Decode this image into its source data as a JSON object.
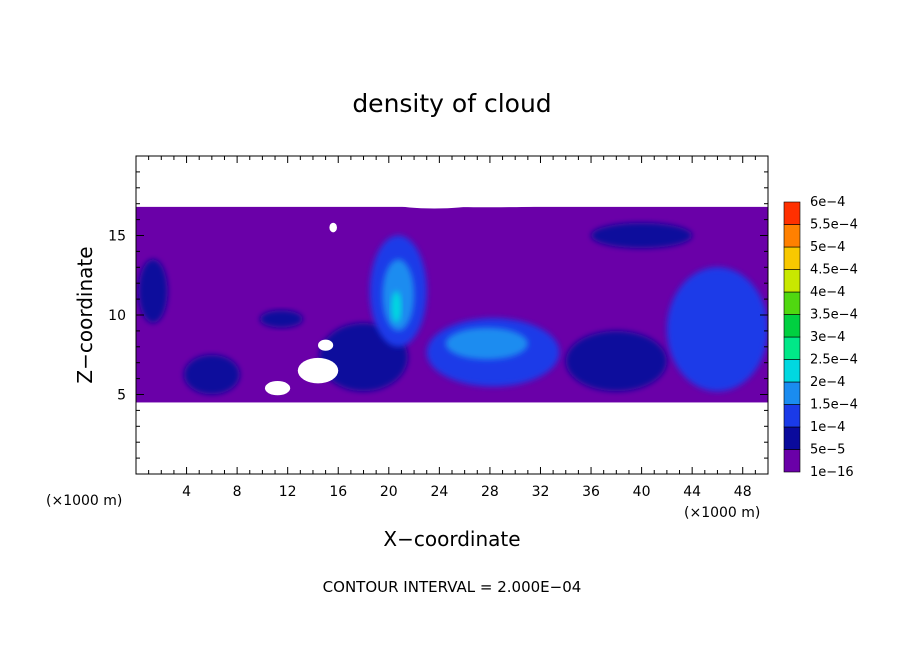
{
  "chart_data": {
    "type": "heatmap",
    "title": "density of cloud",
    "xlabel": "X−coordinate",
    "ylabel": "Z−coordinate",
    "x_unit": "(×1000 m)",
    "y_unit": "(×1000 m)",
    "xlim": [
      0,
      50
    ],
    "ylim": [
      0,
      20
    ],
    "x_ticks": [
      4,
      8,
      12,
      16,
      20,
      24,
      28,
      32,
      36,
      40,
      44,
      48
    ],
    "y_ticks": [
      5,
      10,
      15
    ],
    "grid": false,
    "colorbar": {
      "placement": "right",
      "levels": [
        {
          "label": "1e−16",
          "value": 1e-16,
          "color": "#6a00a8"
        },
        {
          "label": "5e−5",
          "value": 5e-05,
          "color": "#0a0a9c"
        },
        {
          "label": "1e−4",
          "value": 0.0001,
          "color": "#1a3ae8"
        },
        {
          "label": "1.5e−4",
          "value": 0.00015,
          "color": "#1a8cf0"
        },
        {
          "label": "2e−4",
          "value": 0.0002,
          "color": "#00d8e0"
        },
        {
          "label": "2.5e−4",
          "value": 0.00025,
          "color": "#00e888"
        },
        {
          "label": "3e−4",
          "value": 0.0003,
          "color": "#00d040"
        },
        {
          "label": "3.5e−4",
          "value": 0.00035,
          "color": "#50d810"
        },
        {
          "label": "4e−4",
          "value": 0.0004,
          "color": "#c8e800"
        },
        {
          "label": "4.5e−4",
          "value": 0.00045,
          "color": "#f8c800"
        },
        {
          "label": "5e−4",
          "value": 0.0005,
          "color": "#ff8000"
        },
        {
          "label": "5.5e−4",
          "value": 0.00055,
          "color": "#ff3000"
        },
        {
          "label": "6e−4",
          "value": 0.0006,
          "color": "#f08080"
        }
      ]
    },
    "field_regions": [
      {
        "name": "cloud-layer",
        "level": 0,
        "x": [
          0,
          50
        ],
        "z": [
          4.5,
          16.8
        ]
      },
      {
        "name": "blob-w",
        "level": 1,
        "x": [
          0.2,
          2.5
        ],
        "z": [
          9.5,
          13.5
        ]
      },
      {
        "name": "blob-3",
        "level": 1,
        "x": [
          3.8,
          8.2
        ],
        "z": [
          5,
          7.5
        ]
      },
      {
        "name": "blob-10",
        "level": 1,
        "x": [
          9.8,
          13.2
        ],
        "z": [
          9.2,
          10.3
        ]
      },
      {
        "name": "blob-16",
        "level": 1,
        "x": [
          14.5,
          21.5
        ],
        "z": [
          5.2,
          9.5
        ]
      },
      {
        "name": "core-20",
        "level": 2,
        "x": [
          18.5,
          23
        ],
        "z": [
          8,
          15
        ]
      },
      {
        "name": "core-20-inner",
        "level": 3,
        "x": [
          19.5,
          22
        ],
        "z": [
          9,
          13.5
        ]
      },
      {
        "name": "core-20-peak",
        "level": 4,
        "x": [
          20.2,
          21
        ],
        "z": [
          9.5,
          11.5
        ]
      },
      {
        "name": "blob-26",
        "level": 2,
        "x": [
          23,
          33.5
        ],
        "z": [
          5.5,
          9.8
        ]
      },
      {
        "name": "blob-26-inner",
        "level": 3,
        "x": [
          24.5,
          31
        ],
        "z": [
          7.2,
          9.2
        ]
      },
      {
        "name": "blob-38",
        "level": 1,
        "x": [
          34,
          42
        ],
        "z": [
          5.2,
          9
        ]
      },
      {
        "name": "blob-e",
        "level": 2,
        "x": [
          42,
          50
        ],
        "z": [
          5.2,
          13
        ]
      },
      {
        "name": "blob-top",
        "level": 1,
        "x": [
          36,
          44
        ],
        "z": [
          14.2,
          15.8
        ]
      }
    ]
  },
  "note": "CONTOUR INTERVAL = 2.000E−04"
}
